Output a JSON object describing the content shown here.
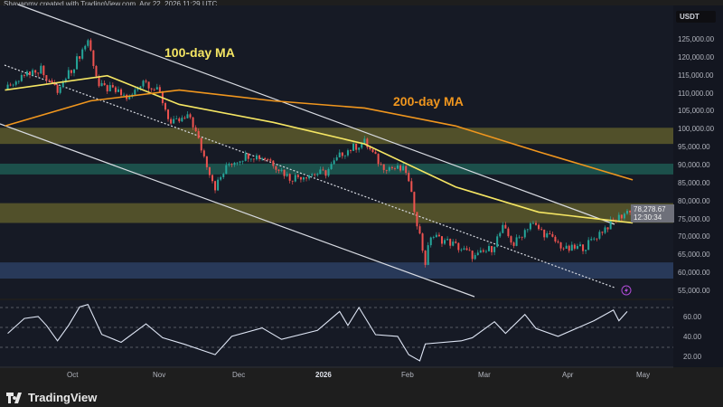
{
  "header": {
    "credit": "Shayanmv created with TradingView.com, Apr 22, 2026 11:29 UTC"
  },
  "currency": "USDT",
  "last_price": "78,278.67",
  "countdown": "12:30:34",
  "footer": {
    "brand": "TradingView",
    "logo_icon": "tradingview-logo-icon"
  },
  "colors": {
    "bg": "#161a25",
    "up": "#26a69a",
    "down": "#ef5350",
    "ma100": "#f5e663",
    "ma200": "#f0961e",
    "rsi": "#dfe6f5",
    "zone_yellow": "#5c5a2c",
    "zone_teal": "#1d5b52",
    "zone_blue": "#2c3f63"
  },
  "chart_data": [
    {
      "type": "candlestick",
      "title": "",
      "x_type": "date",
      "x_ticks": [
        "Oct",
        "Nov",
        "Dec",
        "2026",
        "Feb",
        "Mar",
        "Apr",
        "May"
      ],
      "y_ticks": [
        125000,
        120000,
        115000,
        110000,
        105000,
        100000,
        95000,
        90000,
        85000,
        80000,
        75000,
        70000,
        65000,
        60000,
        55000
      ],
      "ylim": [
        55000,
        127000
      ],
      "grid": false,
      "close_keypoints": [
        [
          "2025-09-06",
          111000
        ],
        [
          "2025-09-14",
          116000
        ],
        [
          "2025-09-19",
          117000
        ],
        [
          "2025-09-25",
          110500
        ],
        [
          "2025-10-01",
          118000
        ],
        [
          "2025-10-06",
          125000
        ],
        [
          "2025-10-10",
          112000
        ],
        [
          "2025-10-15",
          111000
        ],
        [
          "2025-10-21",
          108500
        ],
        [
          "2025-10-26",
          114000
        ],
        [
          "2025-11-01",
          110000
        ],
        [
          "2025-11-05",
          101500
        ],
        [
          "2025-11-12",
          103500
        ],
        [
          "2025-11-17",
          92500
        ],
        [
          "2025-11-21",
          84000
        ],
        [
          "2025-11-26",
          90500
        ],
        [
          "2025-12-03",
          93000
        ],
        [
          "2025-12-10",
          92000
        ],
        [
          "2025-12-18",
          86500
        ],
        [
          "2025-12-25",
          87500
        ],
        [
          "2025-12-31",
          88000
        ],
        [
          "2026-01-06",
          93500
        ],
        [
          "2026-01-14",
          96500
        ],
        [
          "2026-01-20",
          90000
        ],
        [
          "2026-01-29",
          88500
        ],
        [
          "2026-02-01",
          78000
        ],
        [
          "2026-02-05",
          63000
        ],
        [
          "2026-02-07",
          70500
        ],
        [
          "2026-02-14",
          68500
        ],
        [
          "2026-02-23",
          64500
        ],
        [
          "2026-03-01",
          67000
        ],
        [
          "2026-03-05",
          72500
        ],
        [
          "2026-03-09",
          68000
        ],
        [
          "2026-03-15",
          74000
        ],
        [
          "2026-03-22",
          70000
        ],
        [
          "2026-03-28",
          66500
        ],
        [
          "2026-04-04",
          67500
        ],
        [
          "2026-04-10",
          72000
        ],
        [
          "2026-04-15",
          75000
        ],
        [
          "2026-04-21",
          78278.67
        ]
      ],
      "series": [
        {
          "name": "100-day MA",
          "points": [
            [
              "2025-09-06",
              111000
            ],
            [
              "2025-10-13",
              115000
            ],
            [
              "2025-11-08",
              107000
            ],
            [
              "2025-12-12",
              102000
            ],
            [
              "2026-01-14",
              96000
            ],
            [
              "2026-02-16",
              84000
            ],
            [
              "2026-03-18",
              77000
            ],
            [
              "2026-04-21",
              74000
            ]
          ]
        },
        {
          "name": "200-day MA",
          "points": [
            [
              "2025-09-06",
              101000
            ],
            [
              "2025-10-07",
              108000
            ],
            [
              "2025-11-08",
              111000
            ],
            [
              "2025-12-12",
              108000
            ],
            [
              "2026-01-14",
              106000
            ],
            [
              "2026-02-16",
              101000
            ],
            [
              "2026-03-18",
              93800
            ],
            [
              "2026-04-21",
              86000
            ]
          ]
        }
      ],
      "zones": [
        {
          "from": 96000,
          "to": 100500,
          "color": "yellow"
        },
        {
          "from": 87500,
          "to": 90500,
          "color": "teal"
        },
        {
          "from": 74000,
          "to": 79500,
          "color": "yellow"
        },
        {
          "from": 58500,
          "to": 63000,
          "color": "blue"
        }
      ],
      "annotations": [
        "100-day MA",
        "200-day MA"
      ]
    },
    {
      "type": "line",
      "title": "",
      "y_ticks": [
        60,
        40,
        20
      ],
      "guides": [
        70,
        50,
        30
      ],
      "values": [
        [
          "2025-09-07",
          44
        ],
        [
          "2025-09-13",
          59
        ],
        [
          "2025-09-18",
          61
        ],
        [
          "2025-09-21",
          52
        ],
        [
          "2025-09-25",
          36.5
        ],
        [
          "2025-09-29",
          52
        ],
        [
          "2025-10-03",
          70.6
        ],
        [
          "2025-10-06",
          73
        ],
        [
          "2025-10-11",
          43
        ],
        [
          "2025-10-18",
          35
        ],
        [
          "2025-10-27",
          53.6
        ],
        [
          "2025-11-02",
          39.6
        ],
        [
          "2025-11-10",
          33
        ],
        [
          "2025-11-21",
          22.6
        ],
        [
          "2025-11-27",
          41
        ],
        [
          "2025-12-08",
          49.5
        ],
        [
          "2025-12-15",
          38
        ],
        [
          "2025-12-28",
          47
        ],
        [
          "2026-01-05",
          66
        ],
        [
          "2026-01-08",
          52
        ],
        [
          "2026-01-12",
          70
        ],
        [
          "2026-01-18",
          42.7
        ],
        [
          "2026-01-26",
          41
        ],
        [
          "2026-01-30",
          22.6
        ],
        [
          "2026-02-03",
          16.4
        ],
        [
          "2026-02-05",
          33.4
        ],
        [
          "2026-02-18",
          36.5
        ],
        [
          "2026-02-22",
          39.6
        ],
        [
          "2026-03-02",
          55.7
        ],
        [
          "2026-03-06",
          44
        ],
        [
          "2026-03-13",
          63
        ],
        [
          "2026-03-17",
          49
        ],
        [
          "2026-03-25",
          41
        ],
        [
          "2026-04-07",
          56.7
        ],
        [
          "2026-04-14",
          67.5
        ],
        [
          "2026-04-16",
          56.7
        ],
        [
          "2026-04-19",
          66
        ]
      ]
    }
  ]
}
